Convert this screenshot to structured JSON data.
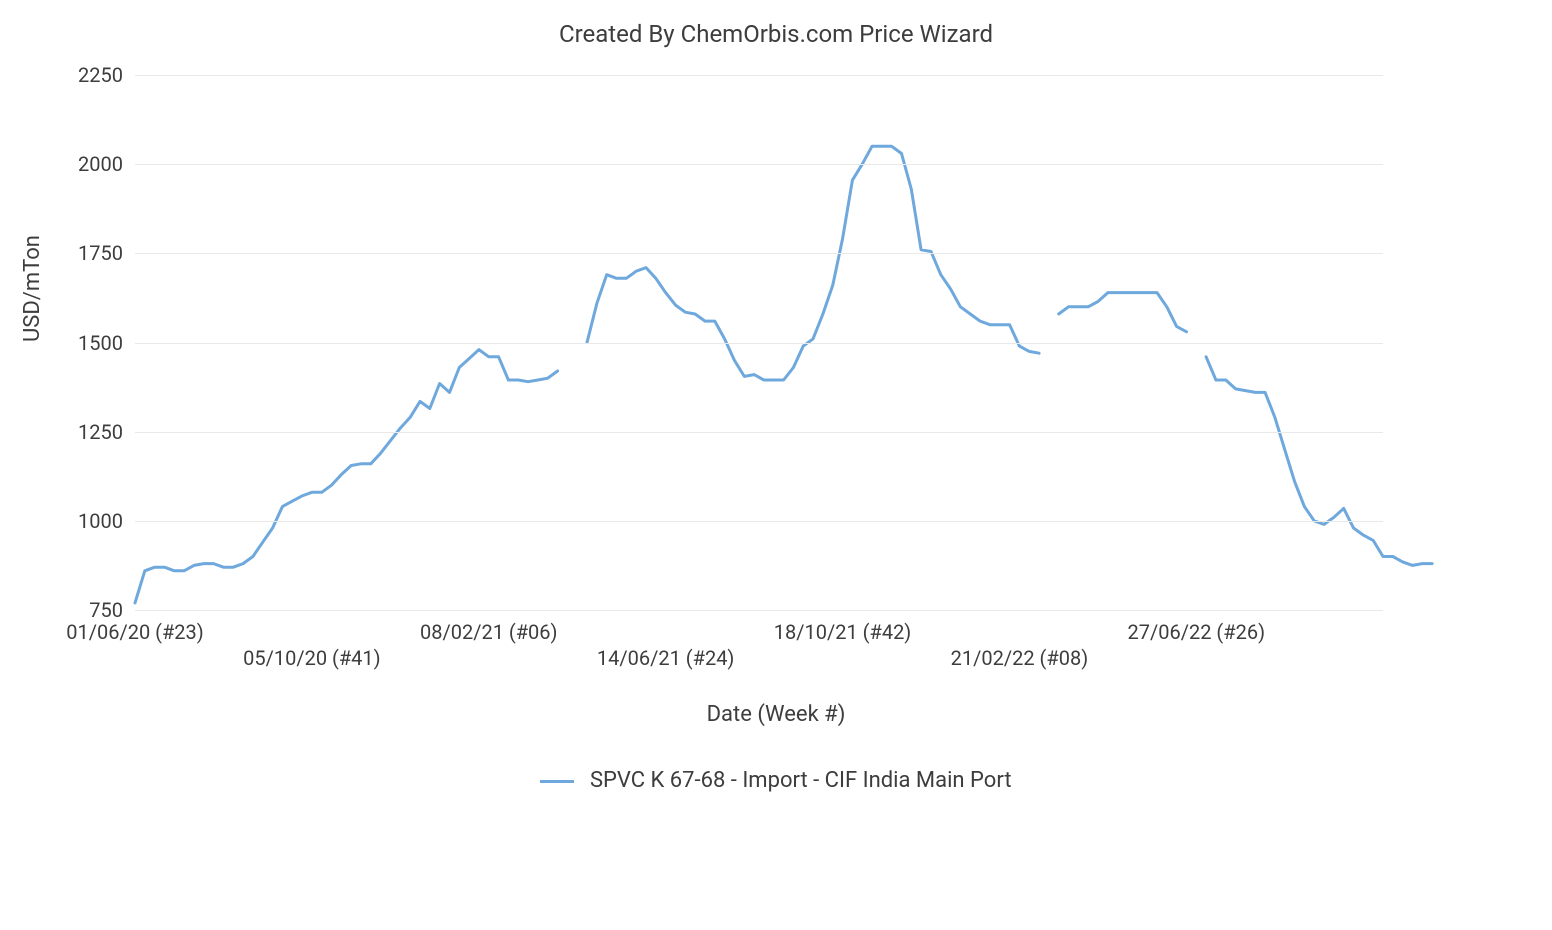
{
  "chart": {
    "type": "line",
    "title": "Created By ChemOrbis.com Price Wizard",
    "title_fontsize": 24,
    "xlabel": "Date (Week #)",
    "ylabel": "USD/mTon",
    "label_fontsize": 22,
    "background_color": "#ffffff",
    "grid_color": "#e9e9e9",
    "tick_font_color": "#3d3d3d",
    "tick_fontsize": 20,
    "line_color": "#6ea8dc",
    "line_width": 3,
    "ylim": [
      750,
      2250
    ],
    "yticks": [
      750,
      1000,
      1250,
      1500,
      1750,
      2000,
      2250
    ],
    "x_count": 128,
    "xticks": [
      {
        "i": 0,
        "label": "01/06/20 (#23)",
        "row": 0
      },
      {
        "i": 18,
        "label": "05/10/20 (#41)",
        "row": 1
      },
      {
        "i": 36,
        "label": "08/02/21 (#06)",
        "row": 0
      },
      {
        "i": 54,
        "label": "14/06/21 (#24)",
        "row": 1
      },
      {
        "i": 72,
        "label": "18/10/21 (#42)",
        "row": 0
      },
      {
        "i": 90,
        "label": "21/02/22 (#08)",
        "row": 1
      },
      {
        "i": 108,
        "label": "27/06/22 (#26)",
        "row": 0
      }
    ],
    "legend_label": "SPVC K 67-68 - Import - CIF India Main Port",
    "segments": [
      [
        770,
        860,
        870,
        870,
        860,
        860,
        875,
        880,
        880,
        870,
        870,
        880,
        900,
        940,
        980,
        1040,
        1055,
        1070,
        1080,
        1080,
        1100,
        1130,
        1155,
        1160,
        1160,
        1190,
        1225,
        1260,
        1290,
        1335,
        1315,
        1385,
        1360,
        1430,
        1455,
        1480,
        1460,
        1460,
        1395,
        1395,
        1390,
        1395,
        1400,
        1420
      ],
      [
        1500,
        1610,
        1690,
        1680,
        1680,
        1700,
        1710,
        1680,
        1640,
        1605,
        1585,
        1580,
        1560,
        1560,
        1510,
        1450,
        1405,
        1410,
        1395,
        1395,
        1395,
        1430,
        1490,
        1510,
        1580,
        1660,
        1790,
        1955,
        2000,
        2050,
        2050,
        2050,
        2030,
        1930,
        1760,
        1755,
        1690,
        1650,
        1600,
        1580,
        1560,
        1550,
        1550,
        1550,
        1490,
        1475,
        1470
      ],
      [
        1580,
        1600,
        1600,
        1600,
        1615,
        1640,
        1640,
        1640,
        1640,
        1640,
        1640,
        1600,
        1545,
        1530
      ],
      [
        1460,
        1395,
        1395,
        1370,
        1365,
        1360,
        1360,
        1290,
        1200,
        1110,
        1040,
        1000,
        990,
        1010,
        1035,
        980,
        960,
        945,
        900,
        900,
        885,
        875,
        880,
        880
      ]
    ],
    "segment_starts": [
      0,
      46,
      94,
      109
    ]
  }
}
